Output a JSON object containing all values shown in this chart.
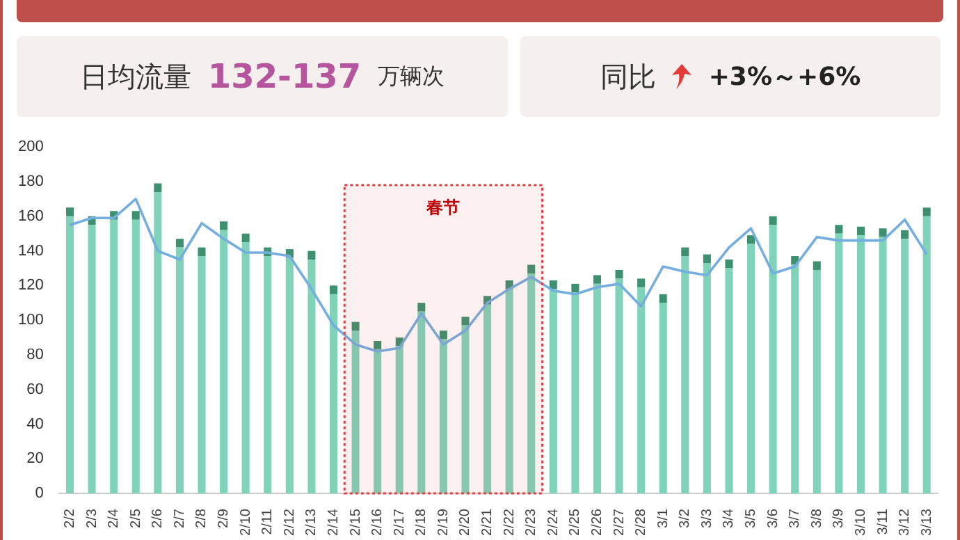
{
  "chart_data": {
    "type": "bar",
    "stacked": true,
    "annotations": [
      "日均流量",
      "132-137",
      "万辆次",
      "同比",
      "+3%～+6%"
    ],
    "categories": [
      "2/2",
      "2/3",
      "2/4",
      "2/5",
      "2/6",
      "2/7",
      "2/8",
      "2/9",
      "2/10",
      "2/11",
      "2/12",
      "2/13",
      "2/14",
      "2/15",
      "2/16",
      "2/17",
      "2/18",
      "2/19",
      "2/20",
      "2/21",
      "2/22",
      "2/23",
      "2/24",
      "2/25",
      "2/26",
      "2/27",
      "2/28",
      "3/1",
      "3/2",
      "3/3",
      "3/4",
      "3/5",
      "3/6",
      "3/7",
      "3/8",
      "3/9",
      "3/10",
      "3/11",
      "3/12",
      "3/13"
    ],
    "series": [
      {
        "color": "#7fd3b9",
        "values": [
          160,
          155,
          158,
          158,
          174,
          142,
          137,
          152,
          145,
          137,
          136,
          135,
          115,
          94,
          83,
          85,
          105,
          89,
          97,
          109,
          118,
          127,
          118,
          116,
          121,
          124,
          119,
          110,
          137,
          133,
          130,
          144,
          155,
          132,
          129,
          150,
          149,
          148,
          147,
          160
        ]
      },
      {
        "color": "#3d9070",
        "values": [
          5,
          5,
          5,
          5,
          5,
          5,
          5,
          5,
          5,
          5,
          5,
          5,
          5,
          5,
          5,
          5,
          5,
          5,
          5,
          5,
          5,
          5,
          5,
          5,
          5,
          5,
          5,
          5,
          5,
          5,
          5,
          5,
          5,
          5,
          5,
          5,
          5,
          5,
          5,
          5
        ]
      },
      {
        "type": "line",
        "color": "#74aee0",
        "values": [
          155,
          159,
          159,
          170,
          140,
          135,
          156,
          147,
          139,
          139,
          137,
          118,
          97,
          86,
          82,
          84,
          104,
          86,
          94,
          110,
          118,
          125,
          117,
          115,
          119,
          121,
          108,
          131,
          128,
          126,
          142,
          153,
          127,
          131,
          148,
          146,
          146,
          146,
          158,
          138
        ]
      }
    ],
    "bands": [
      {
        "axis": "x",
        "from": "2/15",
        "to": "2/23",
        "label": "春节",
        "color": "#e04040"
      }
    ],
    "ylim": [
      0,
      200
    ],
    "yticks": [
      0,
      20,
      40,
      60,
      80,
      100,
      120,
      140,
      160,
      180,
      200
    ],
    "grid": false,
    "legend": false,
    "marker": "none"
  }
}
